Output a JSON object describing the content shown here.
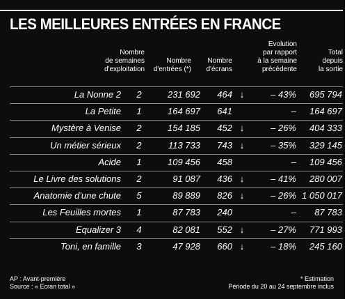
{
  "title": "LES MEILLEURES ENTRÉES EN FRANCE",
  "headers": {
    "weeks": "Nombre\nde semaines\nd'exploitation",
    "entries": "Nombre\nd'entrées (*)",
    "screens": "Nombre\nd'écrans",
    "evolution": "Evolution\npar rapport\nà la semaine\nprécédente",
    "total": "Total\ndepuis\nla sortie"
  },
  "rows": [
    {
      "film": "La Nonne 2",
      "weeks": "2",
      "entries": "231 692",
      "screens": "464",
      "arrow": "down",
      "evolution": "– 43%",
      "total": "695 794"
    },
    {
      "film": "La Petite",
      "weeks": "1",
      "entries": "164 697",
      "screens": "641",
      "arrow": "",
      "evolution": "–",
      "total": "164 697"
    },
    {
      "film": "Mystère à Venise",
      "weeks": "2",
      "entries": "154 185",
      "screens": "452",
      "arrow": "down",
      "evolution": "– 26%",
      "total": "404 333"
    },
    {
      "film": "Un métier sérieux",
      "weeks": "2",
      "entries": "113 733",
      "screens": "743",
      "arrow": "down",
      "evolution": "– 35%",
      "total": "329 145"
    },
    {
      "film": "Acide",
      "weeks": "1",
      "entries": "109 456",
      "screens": "458",
      "arrow": "",
      "evolution": "–",
      "total": "109 456"
    },
    {
      "film": "Le Livre des solutions",
      "weeks": "2",
      "entries": "91 087",
      "screens": "436",
      "arrow": "down",
      "evolution": "– 41%",
      "total": "280 007"
    },
    {
      "film": "Anatomie d'une chute",
      "weeks": "5",
      "entries": "89 889",
      "screens": "826",
      "arrow": "down",
      "evolution": "– 26%",
      "total": "1 050 017"
    },
    {
      "film": "Les Feuilles mortes",
      "weeks": "1",
      "entries": "87 783",
      "screens": "240",
      "arrow": "",
      "evolution": "–",
      "total": "87 783"
    },
    {
      "film": "Equalizer 3",
      "weeks": "4",
      "entries": "82 081",
      "screens": "552",
      "arrow": "down",
      "evolution": "– 27%",
      "total": "771 993"
    },
    {
      "film": "Toni, en famille",
      "weeks": "3",
      "entries": "47 928",
      "screens": "660",
      "arrow": "down",
      "evolution": "– 18%",
      "total": "245 160"
    }
  ],
  "footer": {
    "ap": "AP : Avant-première",
    "source": "Source : « Ecran total »",
    "estimation": "* Estimation",
    "period": "Période du 20 au 24 septembre inclus"
  }
}
